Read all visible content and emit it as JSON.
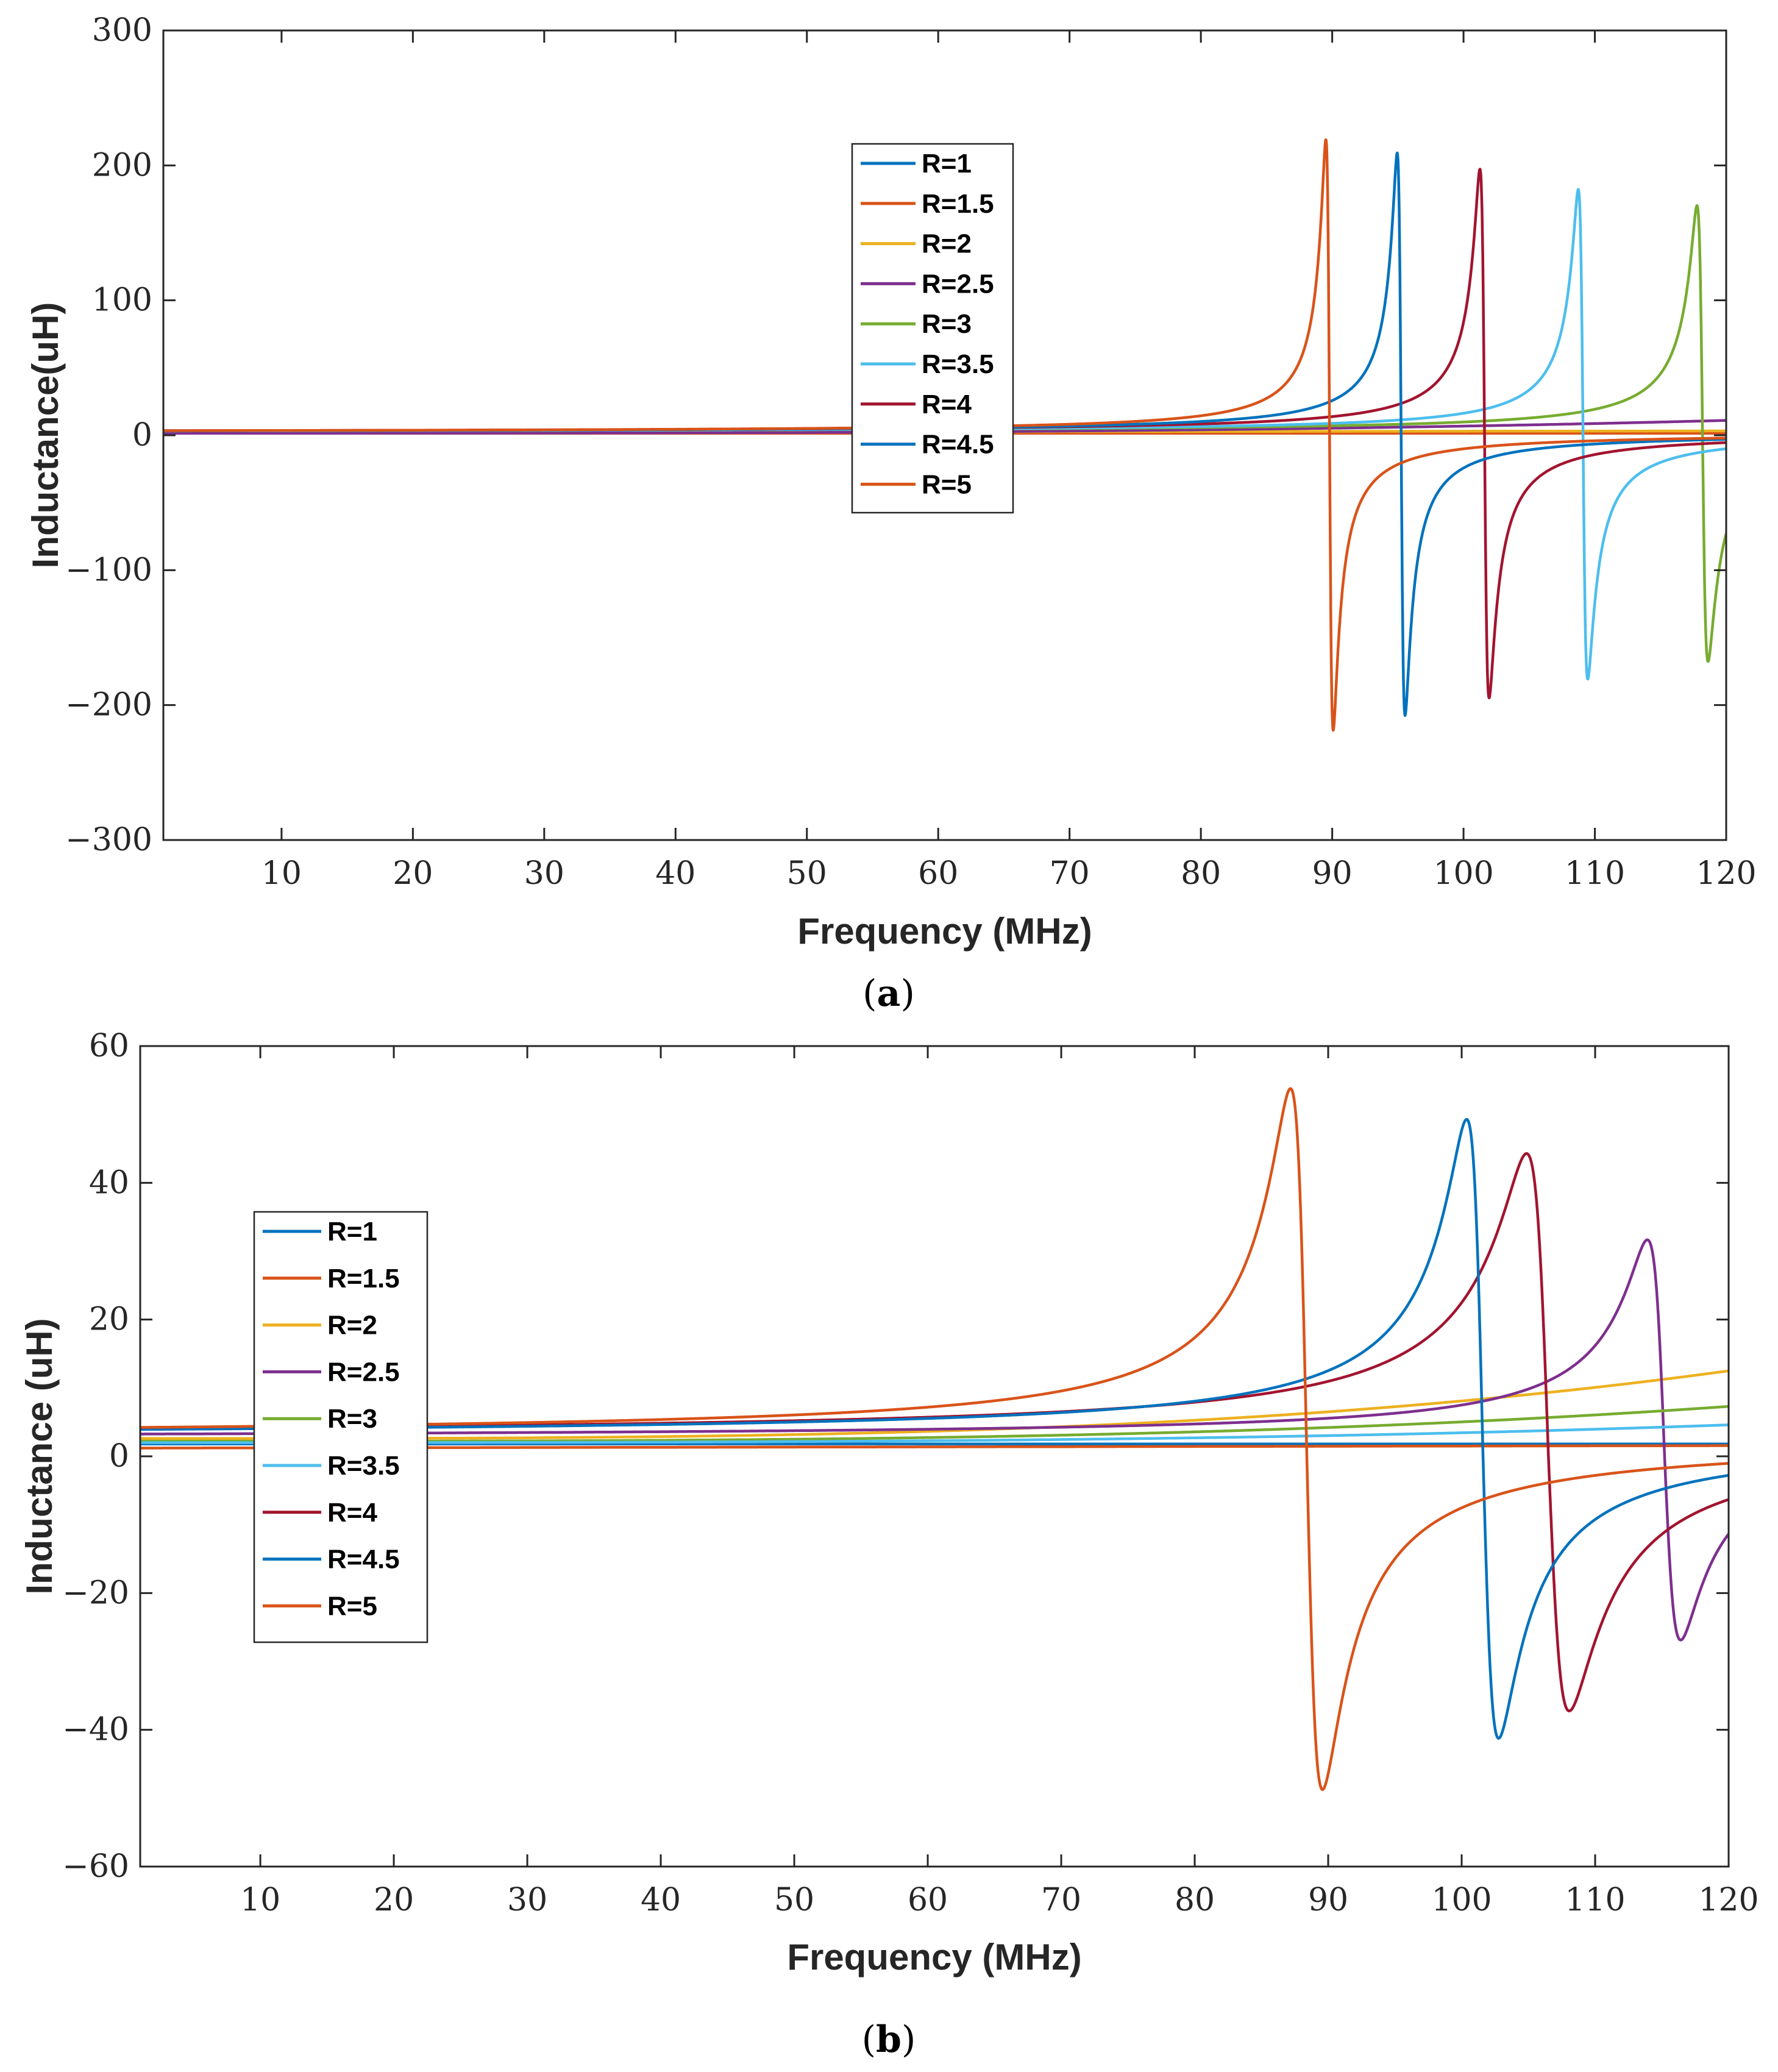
{
  "colors": {
    "R=1": "#0072BD",
    "R=1.5": "#D95319",
    "R=2": "#EDB120",
    "R=2.5": "#7E2F8E",
    "R=3": "#77AC30",
    "R=3.5": "#4DBEEE",
    "R=4": "#A2142F",
    "R=4.5": "#0072BD",
    "R=5": "#D95319"
  },
  "chart_data": [
    {
      "type": "line",
      "panel": "a",
      "caption_open": "(",
      "caption_letter": "a",
      "caption_close": ")",
      "xlabel": "Frequency (MHz)",
      "ylabel": "Inductance(uH)",
      "xlim": [
        1,
        120
      ],
      "ylim": [
        -300,
        300
      ],
      "xticks": [
        10,
        20,
        30,
        40,
        50,
        60,
        70,
        80,
        90,
        100,
        110,
        120
      ],
      "yticks": [
        -300,
        -200,
        -100,
        0,
        100,
        200,
        300
      ],
      "ytick_labels": [
        "−300",
        "−200",
        "−100",
        "0",
        "100",
        "200",
        "300"
      ],
      "legend_position": "top-center",
      "legend": [
        "R=1",
        "R=1.5",
        "R=2",
        "R=2.5",
        "R=3",
        "R=3.5",
        "R=4",
        "R=4.5",
        "R=5"
      ],
      "series": [
        {
          "name": "R=1",
          "kind": "flat",
          "base": 2.5,
          "slope": 0.0
        },
        {
          "name": "R=1.5",
          "kind": "flat",
          "base": 1.5,
          "slope": 0.0
        },
        {
          "name": "R=2",
          "kind": "flat",
          "base": 2.0,
          "slope": 0.01
        },
        {
          "name": "R=2.5",
          "kind": "rising",
          "base": 1.5,
          "end": 11,
          "end_x": 120
        },
        {
          "name": "R=3",
          "kind": "resonance",
          "f0": 118.2,
          "w": 0.42,
          "peak": 169,
          "trough": -169,
          "base": 2.0
        },
        {
          "name": "R=3.5",
          "kind": "resonance",
          "f0": 109.1,
          "w": 0.36,
          "peak": 181,
          "trough": -182,
          "base": 2.0
        },
        {
          "name": "R=4",
          "kind": "resonance",
          "f0": 101.6,
          "w": 0.35,
          "peak": 196,
          "trough": -196,
          "base": 2.0
        },
        {
          "name": "R=4.5",
          "kind": "resonance",
          "f0": 95.25,
          "w": 0.3,
          "peak": 208,
          "trough": -209,
          "base": 2.0
        },
        {
          "name": "R=5",
          "kind": "resonance",
          "f0": 89.8,
          "w": 0.28,
          "peak": 218,
          "trough": -220,
          "base": 2.0
        }
      ]
    },
    {
      "type": "line",
      "panel": "b",
      "caption_open": "(",
      "caption_letter": "b",
      "caption_close": ")",
      "xlabel": "Frequency (MHz)",
      "ylabel": "Inductance (uH)",
      "xlim": [
        1,
        120
      ],
      "ylim": [
        -60,
        60
      ],
      "xticks": [
        10,
        20,
        30,
        40,
        50,
        60,
        70,
        80,
        90,
        100,
        110,
        120
      ],
      "yticks": [
        -60,
        -40,
        -20,
        0,
        20,
        40,
        60
      ],
      "ytick_labels": [
        "−60",
        "−40",
        "−20",
        "0",
        "20",
        "40",
        "60"
      ],
      "legend_position": "middle-left",
      "legend": [
        "R=1",
        "R=1.5",
        "R=2",
        "R=2.5",
        "R=3",
        "R=3.5",
        "R=4",
        "R=4.5",
        "R=5"
      ],
      "series": [
        {
          "name": "R=1",
          "kind": "flat",
          "base": 1.8,
          "slope": 0.0
        },
        {
          "name": "R=1.5",
          "kind": "flat",
          "base": 1.2,
          "slope": 0.003
        },
        {
          "name": "R=2",
          "kind": "rising",
          "base": 2.6,
          "end": 12.5,
          "end_x": 120
        },
        {
          "name": "R=2.5",
          "kind": "resonance",
          "f0": 115.2,
          "w": 1.25,
          "peak": 30,
          "trough": -28.5,
          "base": 2.6
        },
        {
          "name": "R=3",
          "kind": "rising",
          "base": 2.2,
          "end": 7.3,
          "end_x": 120
        },
        {
          "name": "R=3.5",
          "kind": "rising",
          "base": 2.0,
          "end": 4.6,
          "end_x": 120
        },
        {
          "name": "R=4",
          "kind": "resonance",
          "f0": 106.5,
          "w": 1.6,
          "peak": 42.5,
          "trough": -39,
          "base": 2.8
        },
        {
          "name": "R=4.5",
          "kind": "resonance",
          "f0": 101.6,
          "w": 1.2,
          "peak": 47.5,
          "trough": -43,
          "base": 2.8
        },
        {
          "name": "R=5",
          "kind": "resonance",
          "f0": 88.4,
          "w": 1.2,
          "peak": 52,
          "trough": -50.5,
          "base": 2.8
        }
      ]
    }
  ]
}
